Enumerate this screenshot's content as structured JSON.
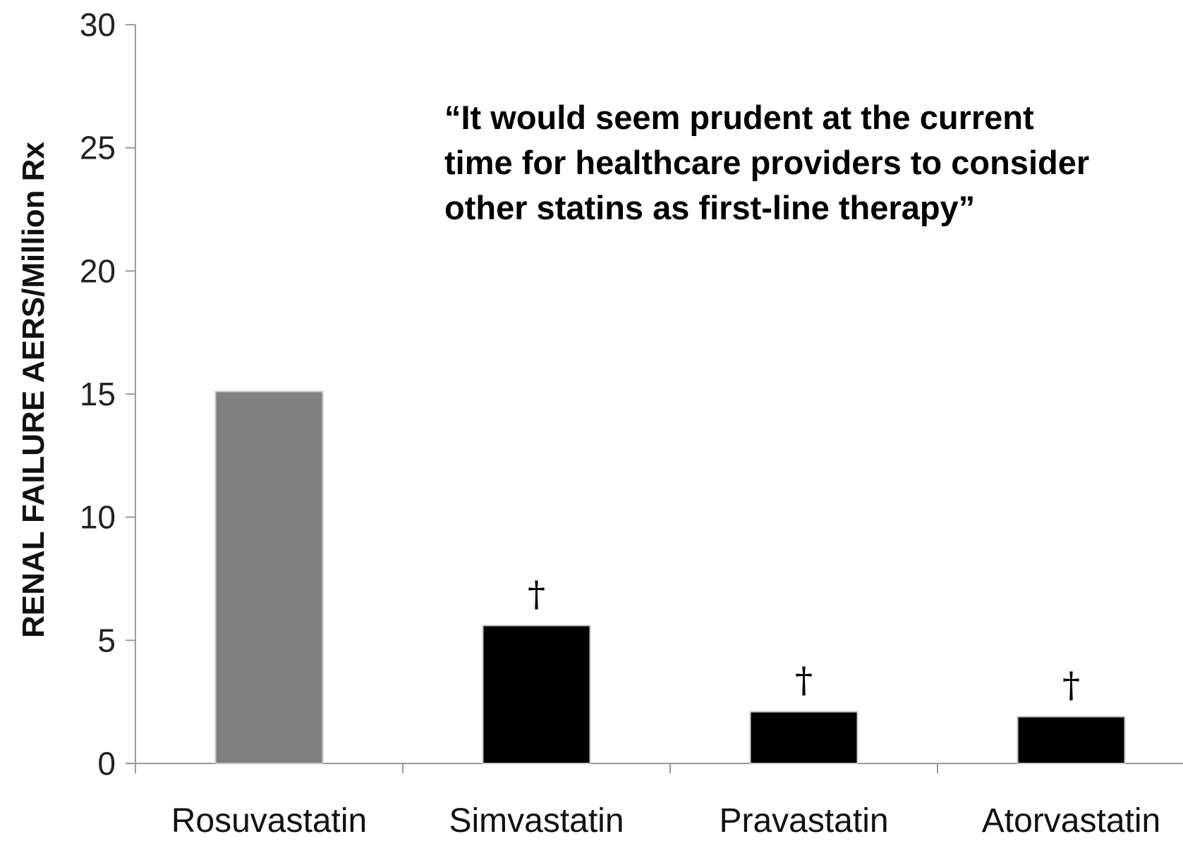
{
  "chart_data": {
    "type": "bar",
    "title": "",
    "xlabel": "",
    "ylabel": "RENAL FAILURE AERS/Million Rx",
    "ylim": [
      0,
      30
    ],
    "yticks": [
      0,
      5,
      10,
      15,
      20,
      25,
      30
    ],
    "categories": [
      "Rosuvastatin",
      "Simvastatin",
      "Pravastatin",
      "Atorvastatin"
    ],
    "values": [
      15.1,
      5.6,
      2.1,
      1.9
    ],
    "bar_colors": [
      "#808080",
      "#000000",
      "#000000",
      "#000000"
    ],
    "markers": [
      "",
      "†",
      "†",
      "†"
    ],
    "annotation_lines": [
      "“It would seem prudent at the current",
      "time for healthcare providers to consider",
      "other statins as first-line therapy”"
    ],
    "grid": false,
    "legend": "none"
  }
}
